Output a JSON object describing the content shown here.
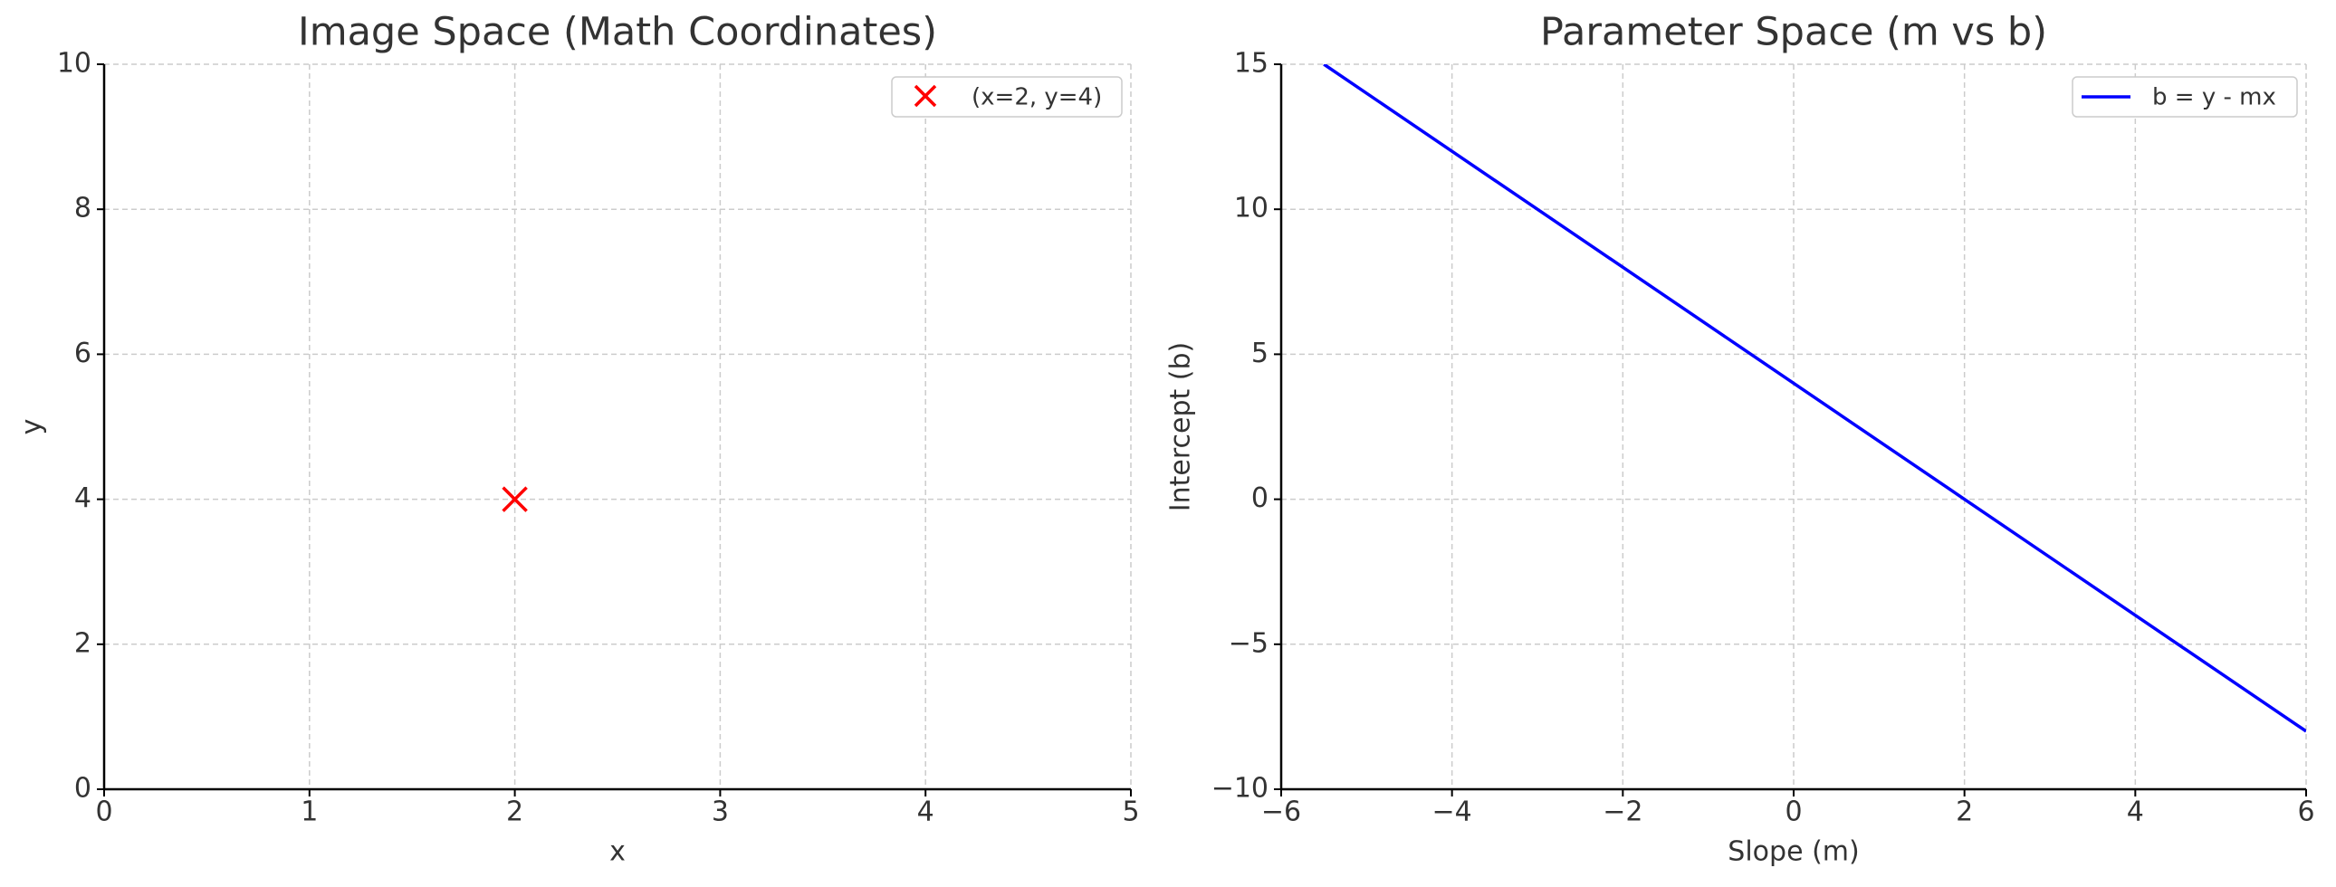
{
  "chart_data": [
    {
      "type": "scatter",
      "title": "Image Space (Math Coordinates)",
      "x_label": "x",
      "y_label": "y",
      "xlim": [
        0,
        5
      ],
      "ylim": [
        0,
        10
      ],
      "xticks": [
        0,
        1,
        2,
        3,
        4,
        5
      ],
      "yticks": [
        0,
        2,
        4,
        6,
        8,
        10
      ],
      "grid": true,
      "legend": "upper right",
      "series": [
        {
          "name": "(x=2, y=4)",
          "color": "#ff0000",
          "marker": "x",
          "x": [
            2
          ],
          "values": [
            4
          ]
        }
      ]
    },
    {
      "type": "line",
      "title": "Parameter Space (m vs b)",
      "x_label": "Slope (m)",
      "y_label": "Intercept (b)",
      "xlim": [
        -6,
        6
      ],
      "ylim": [
        -10,
        15
      ],
      "xticks": [
        {
          "value": -6,
          "label": "−6"
        },
        {
          "value": -4,
          "label": "−4"
        },
        {
          "value": -2,
          "label": "−2"
        },
        0,
        2,
        4,
        6
      ],
      "yticks": [
        {
          "value": -10,
          "label": "−10"
        },
        {
          "value": -5,
          "label": "−5"
        },
        0,
        5,
        10,
        15
      ],
      "grid": true,
      "legend": "upper right",
      "series": [
        {
          "name": "b = y - mx",
          "color": "#0000ff",
          "x": [
            -5.5,
            6
          ],
          "values": [
            15,
            -8
          ]
        }
      ]
    }
  ]
}
